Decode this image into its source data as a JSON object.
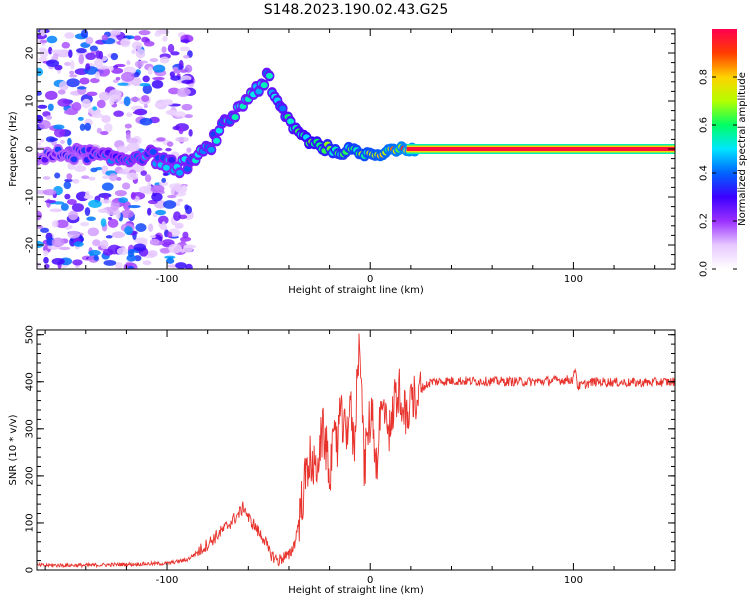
{
  "title": "S148.2023.190.02.43.G25",
  "chart_data": [
    {
      "type": "heatmap",
      "xlabel": "Height of straight line (km)",
      "ylabel": "Frequency (Hz)",
      "xlim": [
        -164,
        150
      ],
      "ylim": [
        -25,
        25
      ],
      "x_ticks": [
        "-100",
        "0",
        "100"
      ],
      "y_ticks": [
        "-20",
        "-10",
        "0",
        "10",
        "20"
      ],
      "colorbar_label": "Normalized spectral amplitude",
      "colorbar_range": [
        0,
        1
      ],
      "colorbar_ticks": [
        "0.0",
        "0.2",
        "0.4",
        "0.6",
        "0.8"
      ],
      "colormap": [
        "#ffffff",
        "#e6c8ff",
        "#9b30ff",
        "#3c00ff",
        "#0064ff",
        "#00e6ff",
        "#00ff64",
        "#b4ff00",
        "#ffd200",
        "#ff3c00",
        "#ff0050"
      ],
      "ridge": {
        "x": [
          -164,
          -150,
          -140,
          -130,
          -120,
          -110,
          -100,
          -95,
          -90,
          -85,
          -80,
          -75,
          -70,
          -65,
          -60,
          -55,
          -52,
          -50,
          -47,
          -45,
          -42,
          -38,
          -35,
          -30,
          -25,
          -20,
          -15,
          -10,
          -5,
          0,
          5,
          10,
          15,
          20,
          150
        ],
        "y": [
          -2,
          -1,
          -1,
          -2,
          -2,
          -1,
          -3,
          -4,
          -3,
          -2,
          0,
          3,
          6,
          8,
          11,
          13,
          14,
          15,
          10,
          9,
          7,
          5,
          3,
          2,
          1,
          0,
          -1,
          0,
          -1,
          -1,
          -1,
          0,
          0,
          0,
          0
        ]
      },
      "noise_region_x": [
        -164,
        -100
      ],
      "ridge_amplitude": {
        "x": [
          -164,
          -100,
          -80,
          -60,
          -40,
          -20,
          0,
          20,
          150
        ],
        "values": [
          0.35,
          0.5,
          0.55,
          0.55,
          0.6,
          0.75,
          0.85,
          0.97,
          0.97
        ]
      }
    },
    {
      "type": "line",
      "xlabel": "Height of straight line (km)",
      "ylabel": "SNR (10 * v/v)",
      "xlim": [
        -164,
        150
      ],
      "ylim": [
        0,
        510
      ],
      "x_ticks": [
        "-100",
        "0",
        "100"
      ],
      "y_ticks": [
        "0",
        "100",
        "200",
        "300",
        "400",
        "500"
      ],
      "color": "#e8332d",
      "series": [
        {
          "x": [
            -164,
            -140,
            -120,
            -100,
            -90,
            -85,
            -80,
            -75,
            -70,
            -65,
            -62,
            -60,
            -57,
            -55,
            -52,
            -50,
            -47,
            -45,
            -42,
            -40,
            -37,
            -35,
            -33,
            -30,
            -27,
            -25,
            -23,
            -20,
            -17,
            -15,
            -12,
            -10,
            -8,
            -6,
            -5,
            -3,
            -1,
            1,
            3,
            5,
            8,
            10,
            12,
            15,
            18,
            20,
            25,
            30,
            40,
            60,
            80,
            100,
            101,
            102,
            110,
            130,
            150
          ],
          "y": [
            10,
            10,
            12,
            14,
            22,
            38,
            55,
            75,
            95,
            118,
            135,
            110,
            95,
            80,
            65,
            40,
            25,
            20,
            30,
            28,
            60,
            110,
            165,
            240,
            205,
            260,
            295,
            210,
            280,
            330,
            280,
            360,
            250,
            450,
            505,
            210,
            300,
            340,
            220,
            330,
            345,
            280,
            370,
            380,
            310,
            355,
            385,
            400,
            402,
            401,
            400,
            405,
            435,
            390,
            400,
            398,
            400
          ]
        }
      ]
    }
  ]
}
